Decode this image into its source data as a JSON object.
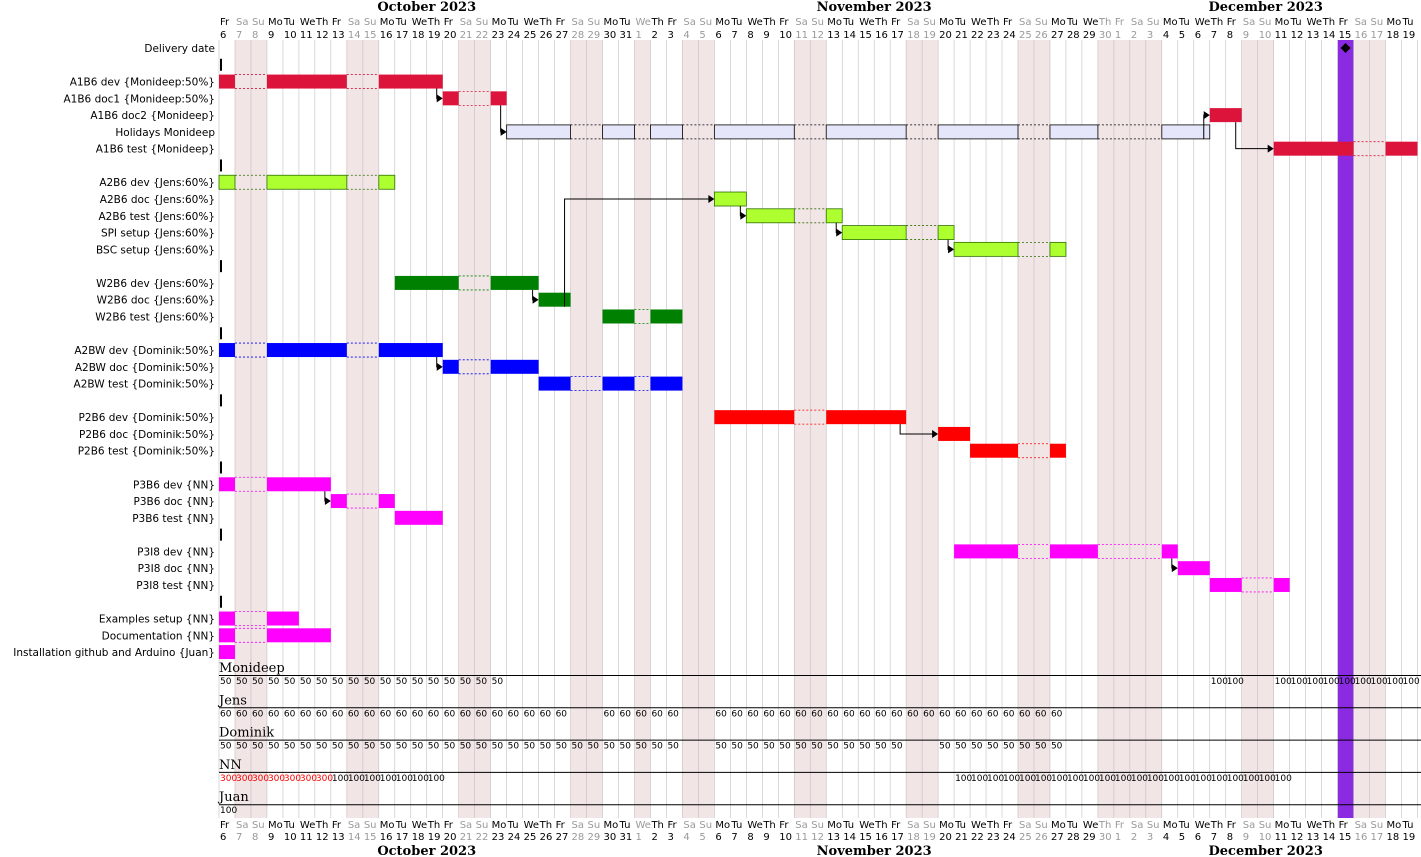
{
  "chart_data": {
    "type": "gantt",
    "months": [
      {
        "label": "October 2023",
        "start": "2023-10-06"
      },
      {
        "label": "November 2023",
        "start": "2023-11-01"
      },
      {
        "label": "December 2023",
        "start": "2023-12-01"
      }
    ],
    "range": [
      "2023-10-06",
      "2023-12-19"
    ],
    "weekday_labels": [
      "Su",
      "Mo",
      "Tu",
      "We",
      "Th",
      "Fr",
      "Sa"
    ],
    "closed_dates": [
      "2023-11-01",
      "2023-11-30",
      "2023-12-01"
    ],
    "highlight_date": "2023-12-15",
    "tasks": [
      {
        "label": "Delivery date",
        "milestone": "2023-12-15"
      },
      {
        "separator": true
      },
      {
        "label": "A1B6 dev {Monideep:50%}",
        "start": "2023-10-06",
        "end": "2023-10-19",
        "color": "#dc143c"
      },
      {
        "label": "A1B6 doc1 {Monideep:50%}",
        "start": "2023-10-20",
        "end": "2023-10-23",
        "color": "#dc143c"
      },
      {
        "label": "A1B6 doc2 {Monideep}",
        "start": "2023-12-07",
        "end": "2023-12-08",
        "color": "#dc143c"
      },
      {
        "label": "Holidays Monideep",
        "start": "2023-10-24",
        "end": "2023-12-06",
        "color": "#e6e6fa",
        "outline": "#000000"
      },
      {
        "label": "A1B6 test {Monideep}",
        "start": "2023-12-11",
        "end": "2023-12-19",
        "color": "#dc143c"
      },
      {
        "separator": true
      },
      {
        "label": "A2B6 dev {Jens:60%}",
        "start": "2023-10-06",
        "end": "2023-10-16",
        "color": "#adff2f",
        "outline": "#2f6f00"
      },
      {
        "label": "A2B6 doc {Jens:60%}",
        "start": "2023-11-06",
        "end": "2023-11-07",
        "color": "#adff2f",
        "outline": "#2f6f00"
      },
      {
        "label": "A2B6 test {Jens:60%}",
        "start": "2023-11-08",
        "end": "2023-11-13",
        "color": "#adff2f",
        "outline": "#2f6f00"
      },
      {
        "label": "SPI setup {Jens:60%}",
        "start": "2023-11-14",
        "end": "2023-11-20",
        "color": "#adff2f",
        "outline": "#2f6f00"
      },
      {
        "label": "BSC setup {Jens:60%}",
        "start": "2023-11-21",
        "end": "2023-11-27",
        "color": "#adff2f",
        "outline": "#2f6f00"
      },
      {
        "separator": true
      },
      {
        "label": "W2B6 dev {Jens:60%}",
        "start": "2023-10-17",
        "end": "2023-10-25",
        "color": "#008000"
      },
      {
        "label": "W2B6 doc {Jens:60%}",
        "start": "2023-10-26",
        "end": "2023-10-27",
        "color": "#008000"
      },
      {
        "label": "W2B6 test {Jens:60%}",
        "start": "2023-10-30",
        "end": "2023-11-03",
        "color": "#008000"
      },
      {
        "separator": true
      },
      {
        "label": "A2BW dev {Dominik:50%}",
        "start": "2023-10-06",
        "end": "2023-10-19",
        "color": "#0000ff"
      },
      {
        "label": "A2BW doc {Dominik:50%}",
        "start": "2023-10-20",
        "end": "2023-10-25",
        "color": "#0000ff"
      },
      {
        "label": "A2BW test {Dominik:50%}",
        "start": "2023-10-26",
        "end": "2023-11-03",
        "color": "#0000ff"
      },
      {
        "separator": true
      },
      {
        "label": "P2B6 dev {Dominik:50%}",
        "start": "2023-11-06",
        "end": "2023-11-17",
        "color": "#ff0000"
      },
      {
        "label": "P2B6 doc {Dominik:50%}",
        "start": "2023-11-20",
        "end": "2023-11-21",
        "color": "#ff0000"
      },
      {
        "label": "P2B6 test {Dominik:50%}",
        "start": "2023-11-22",
        "end": "2023-11-27",
        "color": "#ff0000"
      },
      {
        "separator": true
      },
      {
        "label": "P3B6 dev {NN}",
        "start": "2023-10-06",
        "end": "2023-10-12",
        "color": "#ff00ff"
      },
      {
        "label": "P3B6 doc {NN}",
        "start": "2023-10-13",
        "end": "2023-10-16",
        "color": "#ff00ff"
      },
      {
        "label": "P3B6 test {NN}",
        "start": "2023-10-17",
        "end": "2023-10-19",
        "color": "#ff00ff"
      },
      {
        "separator": true
      },
      {
        "label": "P3I8 dev {NN}",
        "start": "2023-11-21",
        "end": "2023-12-04",
        "color": "#ff00ff"
      },
      {
        "label": "P3I8 doc {NN}",
        "start": "2023-12-05",
        "end": "2023-12-06",
        "color": "#ff00ff"
      },
      {
        "label": "P3I8 test {NN}",
        "start": "2023-12-07",
        "end": "2023-12-11",
        "color": "#ff00ff"
      },
      {
        "separator": true
      },
      {
        "label": "Examples setup {NN}",
        "start": "2023-10-06",
        "end": "2023-10-10",
        "color": "#ff00ff"
      },
      {
        "label": "Documentation {NN}",
        "start": "2023-10-06",
        "end": "2023-10-12",
        "color": "#ff00ff"
      },
      {
        "label": "Installation github and Arduino {Juan}",
        "start": "2023-10-06",
        "end": "2023-10-06",
        "color": "#ff00ff"
      }
    ],
    "dependencies": [
      {
        "from": 2,
        "to": 3
      },
      {
        "from": 3,
        "to": 5
      },
      {
        "from": 5,
        "to": 4
      },
      {
        "from": 4,
        "to": 6
      },
      {
        "from": 8,
        "to": 13
      },
      {
        "from": 13,
        "to": 14
      },
      {
        "from": 14,
        "to": 15
      },
      {
        "from": 15,
        "to": 9
      },
      {
        "from": 9,
        "to": 10
      },
      {
        "from": 10,
        "to": 11
      },
      {
        "from": 11,
        "to": 12
      },
      {
        "from": 17,
        "to": 18
      },
      {
        "from": 18,
        "to": 19
      },
      {
        "from": 19,
        "to": 21
      },
      {
        "from": 21,
        "to": 22
      },
      {
        "from": 22,
        "to": 23
      },
      {
        "from": 25,
        "to": 26
      },
      {
        "from": 26,
        "to": 27
      },
      {
        "from": 29,
        "to": 30
      },
      {
        "from": 30,
        "to": 31
      },
      {
        "from": 11,
        "to": 29,
        "dotted": true
      }
    ],
    "resources": [
      {
        "name": "Monidеep",
        "loads": [
          {
            "start": "2023-10-06",
            "end": "2023-10-23",
            "value": "50"
          },
          {
            "start": "2023-12-07",
            "end": "2023-12-08",
            "value": "100"
          },
          {
            "start": "2023-12-11",
            "end": "2023-12-19",
            "value": "100"
          }
        ]
      },
      {
        "name": "Jens",
        "loads": [
          {
            "start": "2023-10-06",
            "end": "2023-10-27",
            "value": "60"
          },
          {
            "start": "2023-10-30",
            "end": "2023-11-03",
            "value": "60"
          },
          {
            "start": "2023-11-06",
            "end": "2023-11-27",
            "value": "60"
          }
        ]
      },
      {
        "name": "Dominik",
        "loads": [
          {
            "start": "2023-10-06",
            "end": "2023-11-03",
            "value": "50"
          },
          {
            "start": "2023-11-06",
            "end": "2023-11-17",
            "value": "50"
          },
          {
            "start": "2023-11-20",
            "end": "2023-11-27",
            "value": "50"
          }
        ]
      },
      {
        "name": "NN",
        "loads": [
          {
            "start": "2023-10-06",
            "end": "2023-10-12",
            "value": "300",
            "over": true
          },
          {
            "start": "2023-10-13",
            "end": "2023-10-19",
            "value": "100"
          },
          {
            "start": "2023-11-21",
            "end": "2023-12-11",
            "value": "100"
          }
        ]
      },
      {
        "name": "Juan",
        "loads": [
          {
            "start": "2023-10-06",
            "end": "2023-10-06",
            "value": "100"
          }
        ]
      }
    ],
    "colors": {
      "weekend": "#f1e5e5",
      "grid": "#c0c0c0",
      "highlight": "#8a2be2",
      "overload": "#ff0000"
    }
  }
}
